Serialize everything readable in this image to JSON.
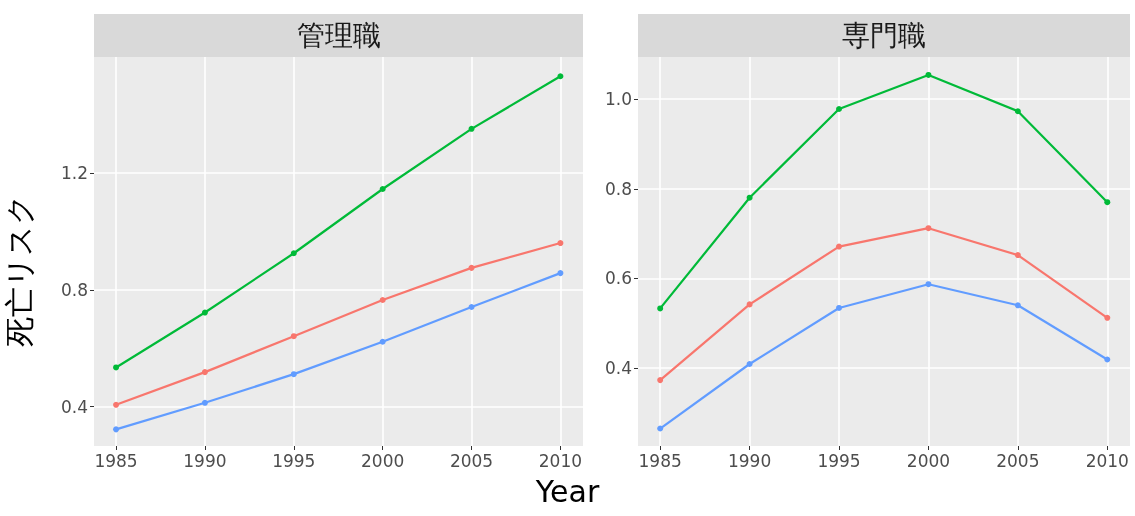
{
  "chart_data": [
    {
      "type": "line",
      "title": "管理職",
      "xlabel": "Year",
      "ylabel": "死亡リスク",
      "x": [
        1985,
        1990,
        1995,
        2000,
        2005,
        2010
      ],
      "series": [
        {
          "color": "#00ba38",
          "values": [
            0.534,
            0.722,
            0.925,
            1.145,
            1.351,
            1.531
          ]
        },
        {
          "color": "#f8766d",
          "values": [
            0.406,
            0.518,
            0.641,
            0.765,
            0.875,
            0.96
          ]
        },
        {
          "color": "#619cff",
          "values": [
            0.322,
            0.413,
            0.511,
            0.622,
            0.741,
            0.857
          ]
        }
      ],
      "xlim": [
        1983.76,
        2011.27
      ],
      "xticks": [
        1985,
        1990,
        1995,
        2000,
        2005,
        2010
      ],
      "ylim": [
        0.265,
        1.597
      ],
      "yticks": [
        0.4,
        0.8,
        1.2
      ],
      "grid": true,
      "marker": "circle",
      "line_style": "solid"
    },
    {
      "type": "line",
      "title": "専門職",
      "x": [
        1985,
        1990,
        1995,
        2000,
        2005,
        2010
      ],
      "series": [
        {
          "color": "#00ba38",
          "values": [
            0.533,
            0.78,
            0.978,
            1.054,
            0.973,
            0.77
          ]
        },
        {
          "color": "#f8766d",
          "values": [
            0.373,
            0.542,
            0.671,
            0.712,
            0.652,
            0.512
          ]
        },
        {
          "color": "#619cff",
          "values": [
            0.265,
            0.409,
            0.534,
            0.587,
            0.54,
            0.419
          ]
        }
      ],
      "xlim": [
        1983.76,
        2011.27
      ],
      "xticks": [
        1985,
        1990,
        1995,
        2000,
        2005,
        2010
      ],
      "ylim": [
        0.226,
        1.094
      ],
      "yticks": [
        0.4,
        0.6,
        0.8,
        {
          "value": 1,
          "label": "1.0"
        }
      ],
      "grid": true,
      "marker": "circle",
      "line_style": "solid"
    }
  ]
}
